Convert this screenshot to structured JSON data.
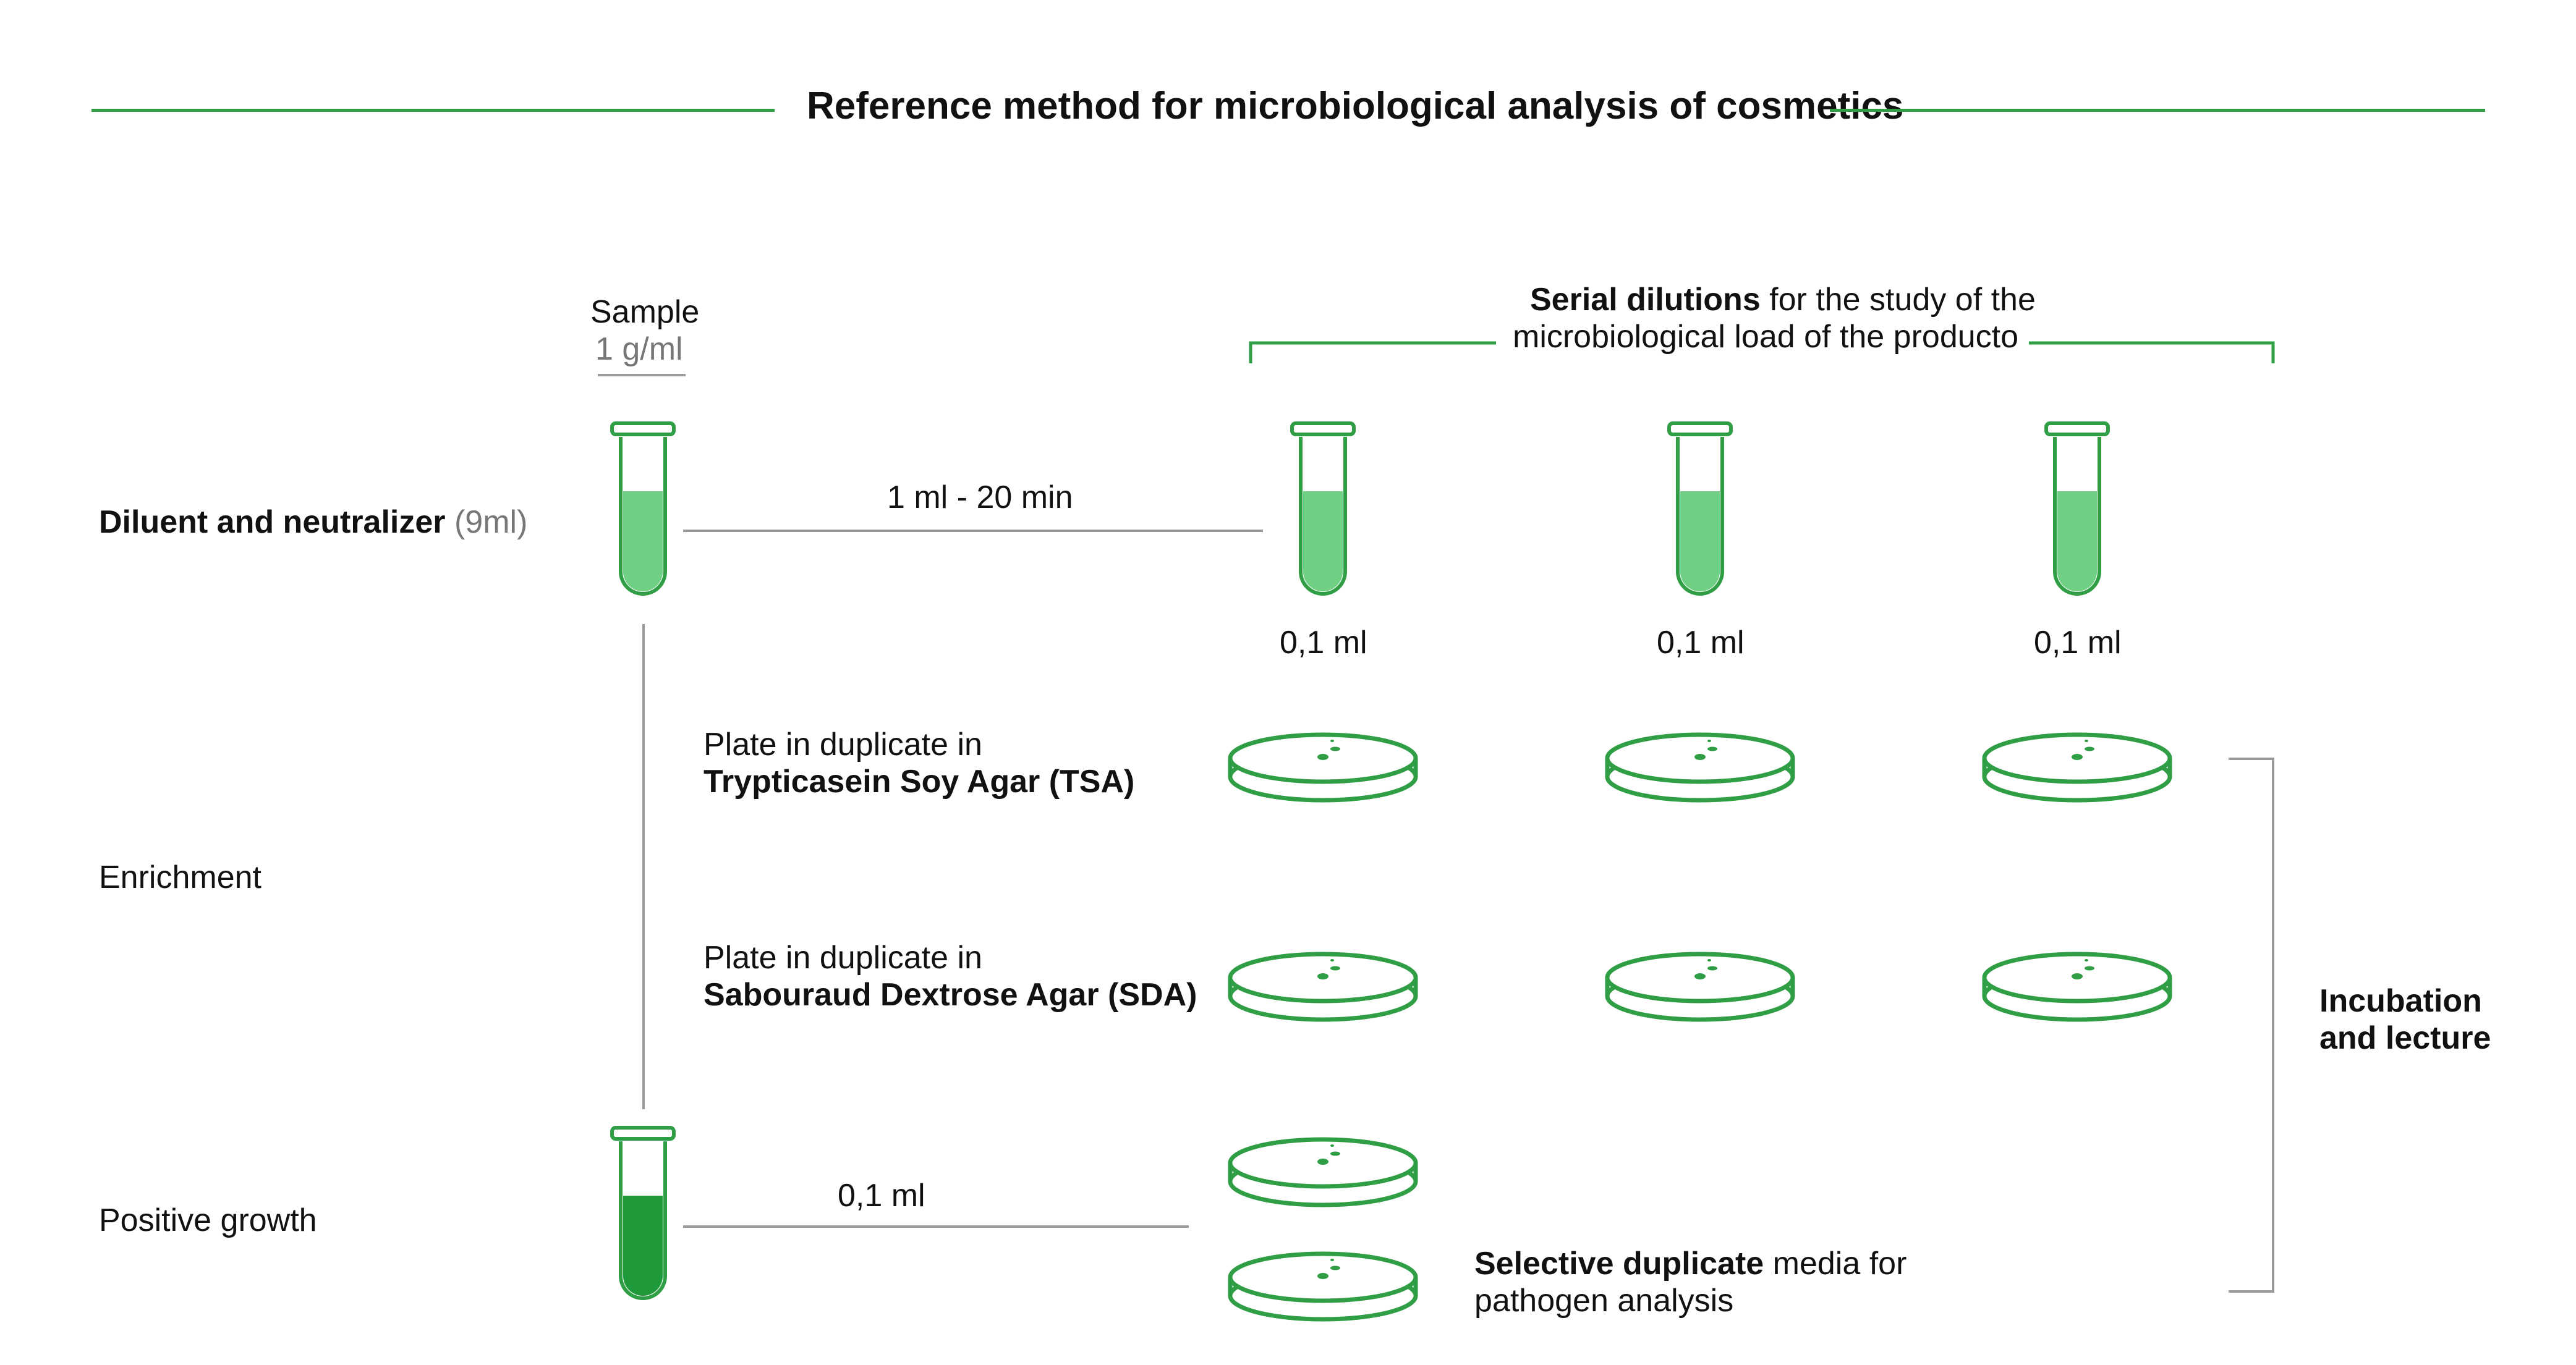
{
  "title": "Reference method for microbiological analysis of cosmetics",
  "sample": {
    "label": "Sample",
    "concentration": "1 g/ml"
  },
  "serial_dilutions": {
    "bold": "Serial dilutions",
    "rest": " for the study of the",
    "line2": "microbiological load of the producto"
  },
  "rows": {
    "diluent": {
      "bold": "Diluent and neutralizer",
      "grey": " (9ml)"
    },
    "enrichment": "Enrichment",
    "positive_growth": "Positive growth"
  },
  "transfer_1": "1 ml - 20 min",
  "transfer_2": "0,1 ml",
  "dilution_volumes": [
    "0,1 ml",
    "0,1 ml",
    "0,1 ml"
  ],
  "tsa": {
    "line1": "Plate in duplicate in",
    "line2": "Trypticasein Soy Agar (TSA)"
  },
  "sda": {
    "line1": "Plate in duplicate in",
    "line2": "Sabouraud Dextrose Agar (SDA)"
  },
  "selective": {
    "bold": "Selective duplicate",
    "rest": " media for",
    "line2": "pathogen analysis"
  },
  "incubation": {
    "line1": "Incubation",
    "line2": "and lecture"
  },
  "colors": {
    "green": "#2f9e44",
    "liquid_light": "#6fd083",
    "liquid_dark": "#1f9a3a",
    "grey_line": "#9a9a9a"
  }
}
